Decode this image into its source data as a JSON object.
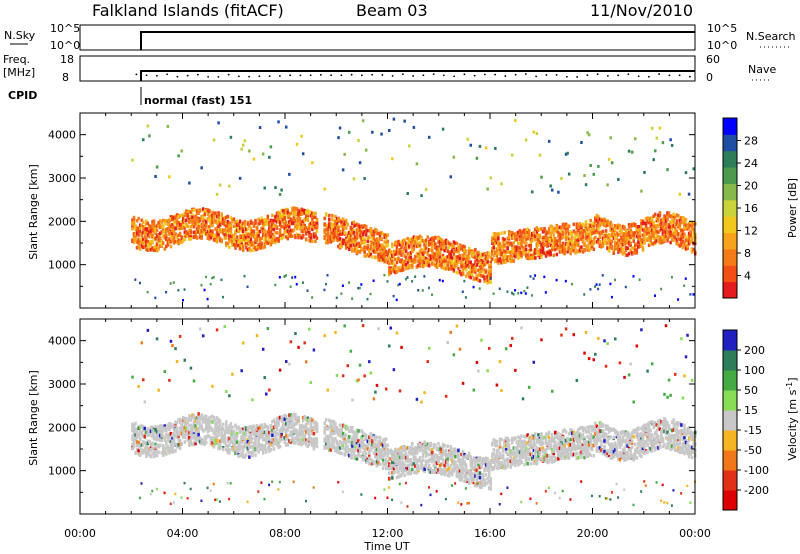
{
  "header": {
    "station": "Falkland Islands (fitACF)",
    "beam": "Beam 03",
    "date": "11/Nov/2010"
  },
  "panels": {
    "nsky": {
      "label": "N.Sky",
      "ticks": [
        "10^5",
        "10^0"
      ],
      "right_label": "N.Search",
      "right_ticks": [
        "10^5",
        "10^0"
      ]
    },
    "freq": {
      "label_top": "Freq.",
      "label_bottom": "[MHz]",
      "ticks": [
        "18",
        "8"
      ],
      "right_label": "Nave",
      "right_ticks": [
        "60",
        "0"
      ]
    },
    "cpid": {
      "label": "CPID",
      "mode_text": "normal (fast) 151"
    }
  },
  "colorbars": {
    "power": {
      "label": "Power [dB]",
      "ticks": [
        "28",
        "24",
        "20",
        "16",
        "12",
        "8",
        "4"
      ],
      "colors": [
        "#0000ff",
        "#1f4ea3",
        "#2e7d5a",
        "#4c9a4c",
        "#86b84a",
        "#c9d43b",
        "#f2c81f",
        "#f7a21b",
        "#f57b16",
        "#f14f14",
        "#e41a1c"
      ]
    },
    "velocity": {
      "label": "Velocity [m s-1]",
      "label_main": "Velocity [m s",
      "label_sup": "-1",
      "label_end": "]",
      "ticks": [
        "200",
        "100",
        "50",
        "15",
        "-15",
        "-50",
        "-100",
        "-200"
      ],
      "colors": [
        "#2020c0",
        "#2e7d5a",
        "#44aa44",
        "#88dd55",
        "#c8c8c8",
        "#f5b520",
        "#f07818",
        "#e03018",
        "#dd0000"
      ]
    }
  },
  "chart_data": [
    {
      "type": "line",
      "name": "N.Sky",
      "x_range": [
        "00:00",
        "24:00"
      ],
      "data_start": "02:00",
      "y_scale": "log",
      "ylim": [
        1,
        100000
      ],
      "note": "dense trace near top of range"
    },
    {
      "type": "scatter",
      "name": "Freq",
      "ylabel": "Freq. [MHz]",
      "ylim": [
        8,
        18
      ],
      "data_start": "02:00",
      "approx_value": 11
    },
    {
      "type": "heatmap",
      "name": "Power",
      "xlabel": "Time UT",
      "ylabel": "Slant Range [km]",
      "x_ticks": [
        "00:00",
        "04:00",
        "08:00",
        "12:00",
        "16:00",
        "20:00",
        "00:00"
      ],
      "y_ticks": [
        "1000",
        "2000",
        "3000",
        "4000"
      ],
      "xlim": [
        0,
        24
      ],
      "ylim": [
        0,
        4500
      ],
      "colorbar": "Power [dB]",
      "data_start": "02:00",
      "data_gap": [
        "09:15",
        "09:30"
      ]
    },
    {
      "type": "heatmap",
      "name": "Velocity",
      "xlabel": "Time UT",
      "ylabel": "Slant Range [km]",
      "x_ticks": [
        "00:00",
        "04:00",
        "08:00",
        "12:00",
        "16:00",
        "20:00",
        "00:00"
      ],
      "y_ticks": [
        "1000",
        "2000",
        "3000",
        "4000"
      ],
      "xlim": [
        0,
        24
      ],
      "ylim": [
        0,
        4500
      ],
      "colorbar": "Velocity [m s-1]",
      "data_start": "02:00",
      "data_gap": [
        "09:15",
        "09:30"
      ]
    }
  ],
  "axes": {
    "x_label": "Time UT",
    "y_label": "Slant Range [km]",
    "x_ticks": [
      "00:00",
      "04:00",
      "08:00",
      "12:00",
      "16:00",
      "20:00",
      "00:00"
    ],
    "y_ticks": [
      "4000",
      "3000",
      "2000",
      "1000"
    ]
  }
}
